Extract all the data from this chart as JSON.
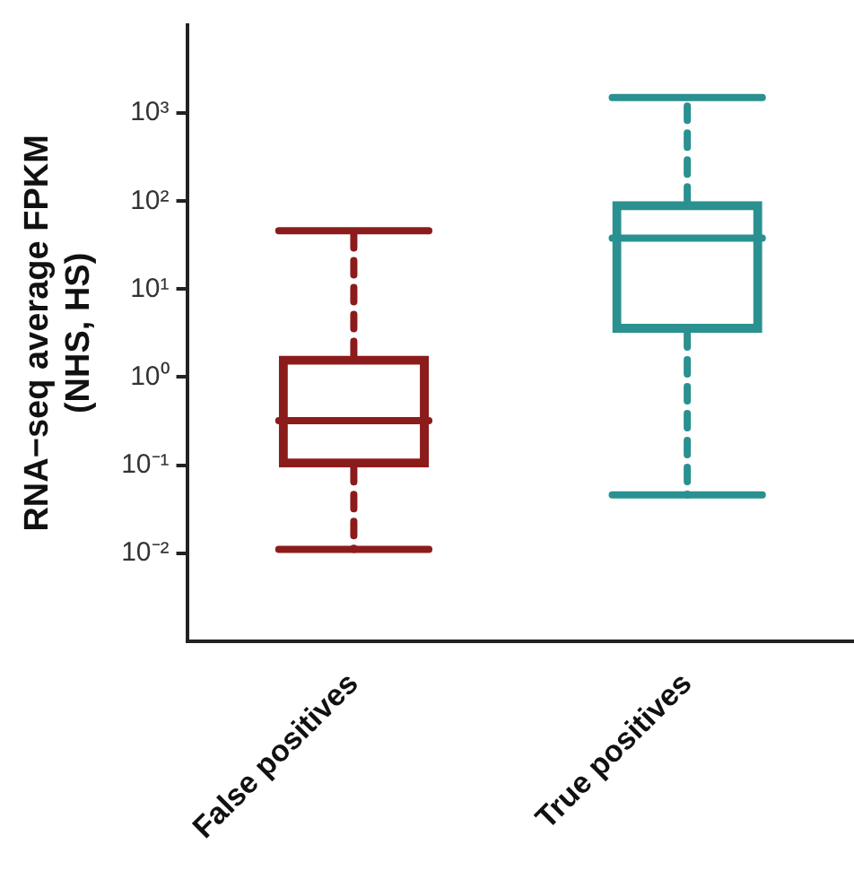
{
  "chart_data": {
    "type": "box",
    "ylabel": "RNA−seq average FPKM\n(NHS, HS)",
    "categories": [
      "False positives",
      "True positives"
    ],
    "log": true,
    "ylim": [
      0.001,
      10000
    ],
    "yticks": [
      {
        "value": 0.01,
        "label": "10⁻²"
      },
      {
        "value": 0.1,
        "label": "10⁻¹"
      },
      {
        "value": 1,
        "label": "10⁰"
      },
      {
        "value": 10,
        "label": "10¹"
      },
      {
        "value": 100,
        "label": "10²"
      },
      {
        "value": 1000,
        "label": "10³"
      }
    ],
    "grid": false,
    "legend": false,
    "colors": [
      "#8c1c1c",
      "#2a9090"
    ],
    "line_style": "dashed",
    "boxes": [
      {
        "low": 0.011,
        "q1": 0.094,
        "median": 0.32,
        "q3": 1.75,
        "high": 46
      },
      {
        "low": 0.046,
        "q1": 3.2,
        "median": 38,
        "q3": 100,
        "high": 1500
      }
    ]
  }
}
